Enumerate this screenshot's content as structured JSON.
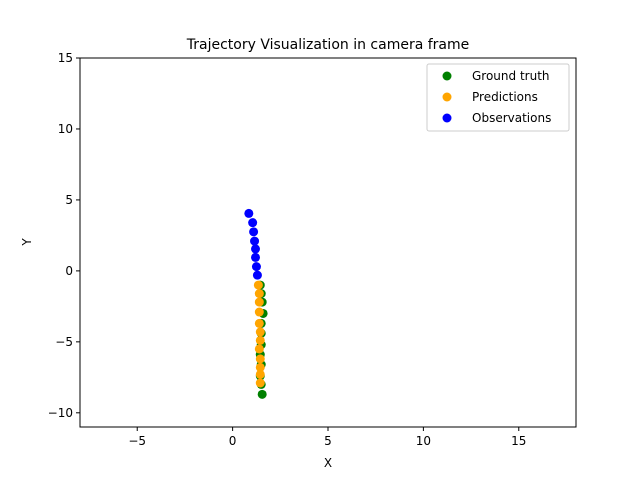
{
  "chart_data": {
    "type": "scatter",
    "title": "Trajectory Visualization in camera frame",
    "xlabel": "X",
    "ylabel": "Y",
    "xlim": [
      -8,
      18
    ],
    "ylim": [
      -11,
      15
    ],
    "xticks": [
      -5,
      0,
      5,
      10,
      15
    ],
    "yticks": [
      -10,
      -5,
      0,
      5,
      10,
      15
    ],
    "grid": false,
    "legend_position": "top-right",
    "series": [
      {
        "name": "Ground truth",
        "color": "#008000",
        "points": [
          [
            1.45,
            -1.0
          ],
          [
            1.5,
            -1.6
          ],
          [
            1.55,
            -2.2
          ],
          [
            1.6,
            -3.0
          ],
          [
            1.5,
            -3.7
          ],
          [
            1.5,
            -4.4
          ],
          [
            1.5,
            -5.2
          ],
          [
            1.45,
            -5.9
          ],
          [
            1.5,
            -6.6
          ],
          [
            1.45,
            -7.4
          ],
          [
            1.5,
            -8.0
          ],
          [
            1.55,
            -8.7
          ]
        ]
      },
      {
        "name": "Predictions",
        "color": "#FFA500",
        "points": [
          [
            1.35,
            -1.0
          ],
          [
            1.4,
            -1.6
          ],
          [
            1.4,
            -2.2
          ],
          [
            1.4,
            -2.9
          ],
          [
            1.4,
            -3.7
          ],
          [
            1.45,
            -4.3
          ],
          [
            1.45,
            -4.9
          ],
          [
            1.4,
            -5.5
          ],
          [
            1.45,
            -6.2
          ],
          [
            1.45,
            -6.8
          ],
          [
            1.45,
            -7.3
          ],
          [
            1.45,
            -7.9
          ]
        ]
      },
      {
        "name": "Observations",
        "color": "#0000FF",
        "points": [
          [
            0.85,
            4.05
          ],
          [
            1.05,
            3.4
          ],
          [
            1.1,
            2.75
          ],
          [
            1.15,
            2.1
          ],
          [
            1.2,
            1.55
          ],
          [
            1.2,
            0.95
          ],
          [
            1.25,
            0.3
          ],
          [
            1.3,
            -0.3
          ]
        ]
      }
    ]
  }
}
